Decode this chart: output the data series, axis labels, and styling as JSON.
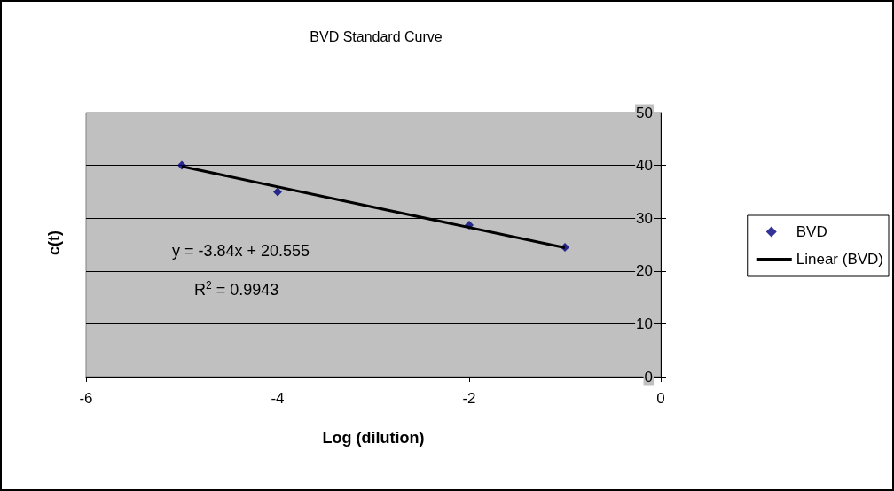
{
  "chart_data": {
    "type": "scatter",
    "title": "BVD Standard Curve",
    "xlabel": "Log (dilution)",
    "ylabel": "c(t)",
    "annotations": [
      "y = -3.84x + 20.555",
      "R$^{2}$ = 0.9943"
    ],
    "series": [
      {
        "name": "BVD",
        "color": "#000080",
        "marker": "diamond",
        "x": [
          -5,
          -4,
          -2,
          -1
        ],
        "values": [
          40,
          35,
          28.7,
          24.5
        ]
      },
      {
        "name": "Linear (BVD)",
        "type": "line",
        "color": "#000000",
        "marker": "none",
        "x": [
          -5,
          -1
        ],
        "values": [
          39.8,
          24.4
        ]
      }
    ],
    "xlim": [
      -6,
      0
    ],
    "xticks": [
      -6,
      -4,
      -2,
      0
    ],
    "ylim": [
      0,
      50
    ],
    "yticks": [
      0,
      10,
      20,
      30,
      40,
      50
    ],
    "grid": "y",
    "legend": "right",
    "line_style": "solid"
  }
}
